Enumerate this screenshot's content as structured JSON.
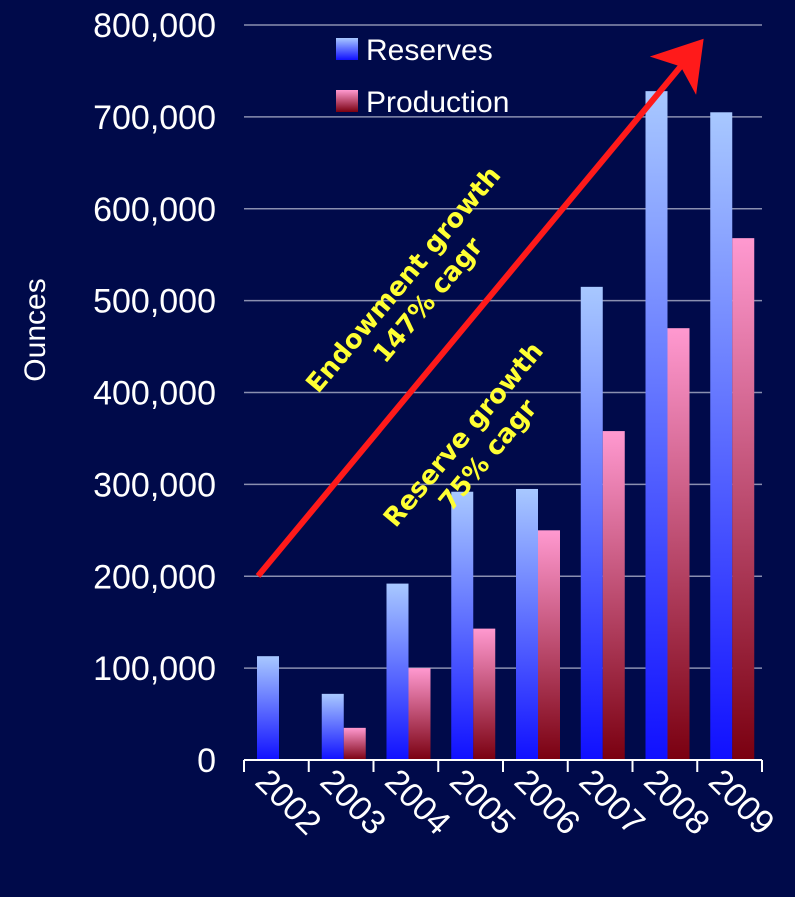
{
  "chart_data": {
    "type": "bar",
    "title": "",
    "xlabel": "",
    "ylabel": "Ounces",
    "categories": [
      "2002",
      "2003",
      "2004",
      "2005",
      "2006",
      "2007",
      "2008",
      "2009"
    ],
    "series": [
      {
        "name": "Reserves",
        "values": [
          113000,
          72000,
          192000,
          292000,
          295000,
          515000,
          728000,
          705000
        ]
      },
      {
        "name": "Production",
        "values": [
          0,
          35000,
          100000,
          143000,
          250000,
          358000,
          470000,
          568000
        ]
      }
    ],
    "ylim": [
      0,
      800000
    ],
    "yticks": [
      "0",
      "100,000",
      "200,000",
      "300,000",
      "400,000",
      "500,000",
      "600,000",
      "700,000",
      "800,000"
    ],
    "grid": true,
    "legend": "top-center",
    "colors": {
      "background": "#000a4a",
      "reserves_top": "#a8c8ff",
      "reserves_bottom": "#1010ff",
      "production_top": "#ff99d0",
      "production_bottom": "#7a0010",
      "arrow": "#ff1a1a",
      "annotation": "#ffff33",
      "grid": "#8a8fb0"
    },
    "annotations": {
      "endowment_line1": "Endowment growth",
      "endowment_line2": "147% cagr",
      "reserve_line1": "Reserve growth",
      "reserve_line2": "75% cagr"
    }
  }
}
